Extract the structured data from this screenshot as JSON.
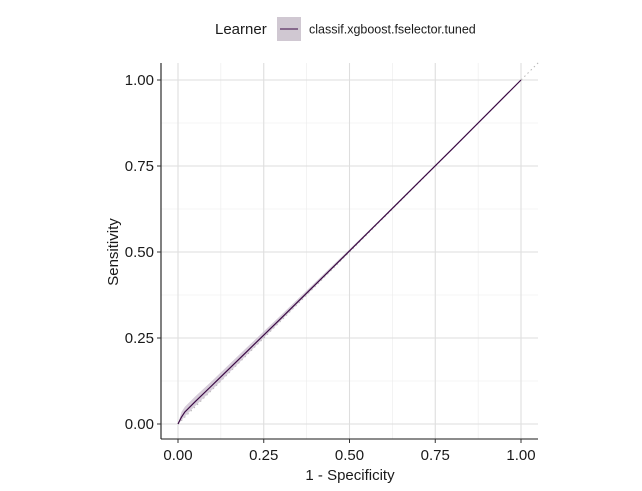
{
  "chart_data": {
    "type": "line",
    "title": "",
    "xlabel": "1 - Specificity",
    "ylabel": "Sensitivity",
    "xlim": [
      0,
      1
    ],
    "ylim": [
      0,
      1
    ],
    "x_ticks": [
      0,
      0.25,
      0.5,
      0.75,
      1
    ],
    "y_ticks": [
      0,
      0.25,
      0.5,
      0.75,
      1
    ],
    "x_tick_labels": [
      "0.00",
      "0.25",
      "0.50",
      "0.75",
      "1.00"
    ],
    "y_tick_labels": [
      "0.00",
      "0.25",
      "0.50",
      "0.75",
      "1.00"
    ],
    "grid": true,
    "legend": {
      "title": "Learner",
      "placement": "top",
      "entries": [
        "classif.xgboost.fselector.tuned"
      ]
    },
    "series": [
      {
        "name": "classif.xgboost.fselector.tuned",
        "color": "#3b0a45",
        "band_color": "#c9bccd",
        "x": [
          0,
          0.01,
          0.02,
          0.05,
          0.1,
          0.2,
          0.3,
          0.4,
          0.5,
          0.6,
          0.7,
          0.8,
          0.9,
          1
        ],
        "y": [
          0,
          0.02,
          0.035,
          0.065,
          0.113,
          0.21,
          0.307,
          0.405,
          0.503,
          0.602,
          0.701,
          0.8,
          0.9,
          1
        ],
        "y_lower": [
          0,
          0.01,
          0.022,
          0.052,
          0.1,
          0.2,
          0.3,
          0.4,
          0.5,
          0.6,
          0.7,
          0.8,
          0.9,
          1
        ],
        "y_upper": [
          0,
          0.035,
          0.05,
          0.08,
          0.126,
          0.222,
          0.316,
          0.412,
          0.508,
          0.605,
          0.703,
          0.801,
          0.9,
          1
        ]
      }
    ],
    "reference_line": {
      "x": [
        0,
        1
      ],
      "y": [
        0,
        1
      ],
      "color": "#b5b5b5"
    }
  }
}
